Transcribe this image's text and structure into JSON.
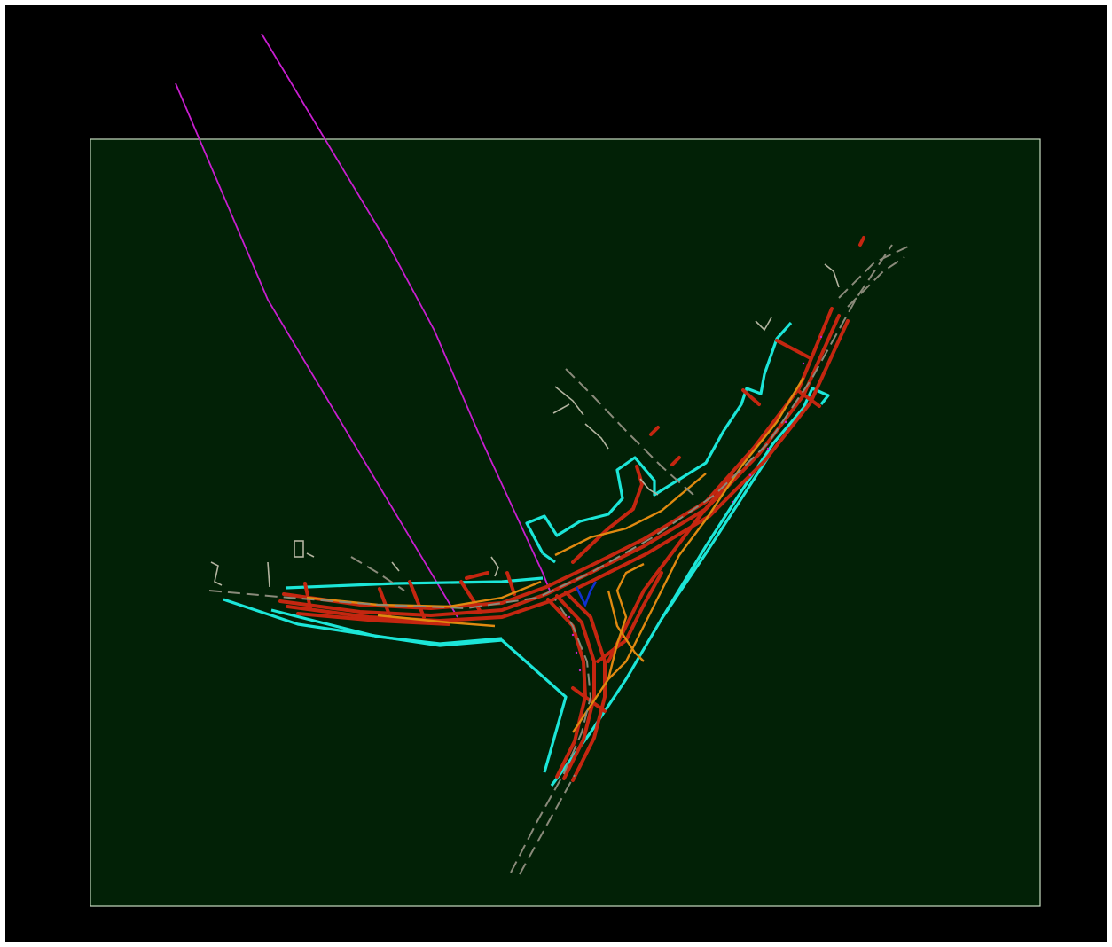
{
  "viewport": {
    "background_color": "#000000",
    "sheet_color": "#022106",
    "sheet_border_color": "#c8dcc0"
  },
  "layers": [
    {
      "name": "route-alignment",
      "color": "#c81ecf"
    },
    {
      "name": "right-of-way",
      "color": "#1ce6d8"
    },
    {
      "name": "pavement",
      "color": "#c42610"
    },
    {
      "name": "ramp-edges",
      "color": "#e08a10"
    },
    {
      "name": "centerline",
      "color": "#8a8a7a"
    },
    {
      "name": "existing-features",
      "color": "#b4b4a0"
    },
    {
      "name": "water-feature",
      "color": "#1030d0"
    }
  ]
}
